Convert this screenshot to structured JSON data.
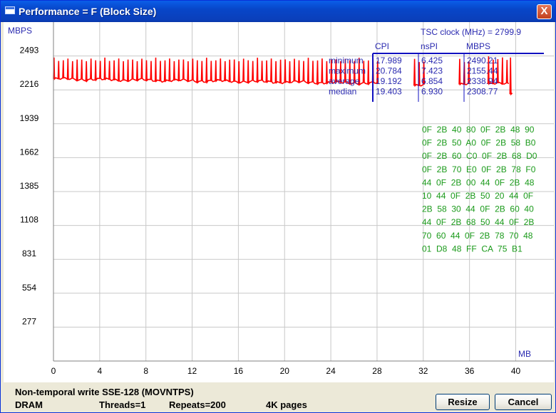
{
  "window": {
    "title": "Performance = F (Block Size)",
    "close_glyph": "X"
  },
  "chart_data": {
    "type": "line",
    "ylabel": "MBPS",
    "xlabel": "MB",
    "yticks": [
      "2493",
      "2216",
      "1939",
      "1662",
      "1385",
      "1108",
      "831",
      "554",
      "277"
    ],
    "ytick_values": [
      2493,
      2216,
      1939,
      1662,
      1385,
      1108,
      831,
      554,
      277
    ],
    "xticks": [
      "0",
      "4",
      "8",
      "12",
      "16",
      "20",
      "24",
      "28",
      "32",
      "36",
      "40"
    ],
    "xtick_values": [
      0,
      4,
      8,
      12,
      16,
      20,
      24,
      28,
      32,
      36,
      40
    ],
    "xlim": [
      0,
      43.3
    ],
    "ylim": [
      0,
      2770
    ],
    "grid": true,
    "series_color": "#ff0000",
    "series": [
      {
        "x_start": 0,
        "x_end": 28,
        "base": 2305,
        "base_end": 2270,
        "peak": 2480,
        "peak_step": 0.27,
        "dip": 2270,
        "dip_step": 0.27
      },
      {
        "x_start": 31.2,
        "x_end": 32.1,
        "base": 2250,
        "peak": 2470
      },
      {
        "x_start": 35.1,
        "x_end": 35.9,
        "base": 2260,
        "peak": 2470
      },
      {
        "x_start": 37.6,
        "x_end": 39.4,
        "base": 2265,
        "peak": 2490
      },
      {
        "x_start": 39.5,
        "x_end": 39.8,
        "base": 2180,
        "peak": 2480
      }
    ],
    "stats": {
      "tsc": "TSC clock (MHz)  = 2799.9",
      "headers": [
        "CPI",
        "nsPI",
        "MBPS"
      ],
      "row_labels": [
        "minimum",
        "maximum",
        "average",
        "median"
      ],
      "cpi": [
        "17.989",
        "20.784",
        "19.192",
        "19.403"
      ],
      "nspi": [
        "6.425",
        "7.423",
        "6.854",
        "6.930"
      ],
      "mbps": [
        "2490.21",
        "2155.44",
        "2338.94",
        "2308.77"
      ]
    },
    "hex_dump": [
      "0F  2B  40  80  0F  2B  48  90",
      "0F  2B  50  A0  0F  2B  58  B0",
      "0F  2B  60  C0  0F  2B  68  D0",
      "0F  2B  70  E0  0F  2B  78  F0",
      "44  0F  2B  00  44  0F  2B  48",
      "10  44  0F  2B  50  20  44  0F",
      "2B  58  30  44  0F  2B  60  40",
      "44  0F  2B  68  50  44  0F  2B",
      "70  60  44  0F  2B  78  70  48",
      "01  D8  48  FF  CA  75  B1"
    ]
  },
  "footer": {
    "test_name": "Non-temporal write SSE-128 (MOVNTPS)",
    "memory": "DRAM",
    "threads": "Threads=1",
    "repeats": "Repeats=200",
    "pages": "4K pages"
  },
  "buttons": {
    "resize": "Resize",
    "cancel": "Cancel"
  }
}
